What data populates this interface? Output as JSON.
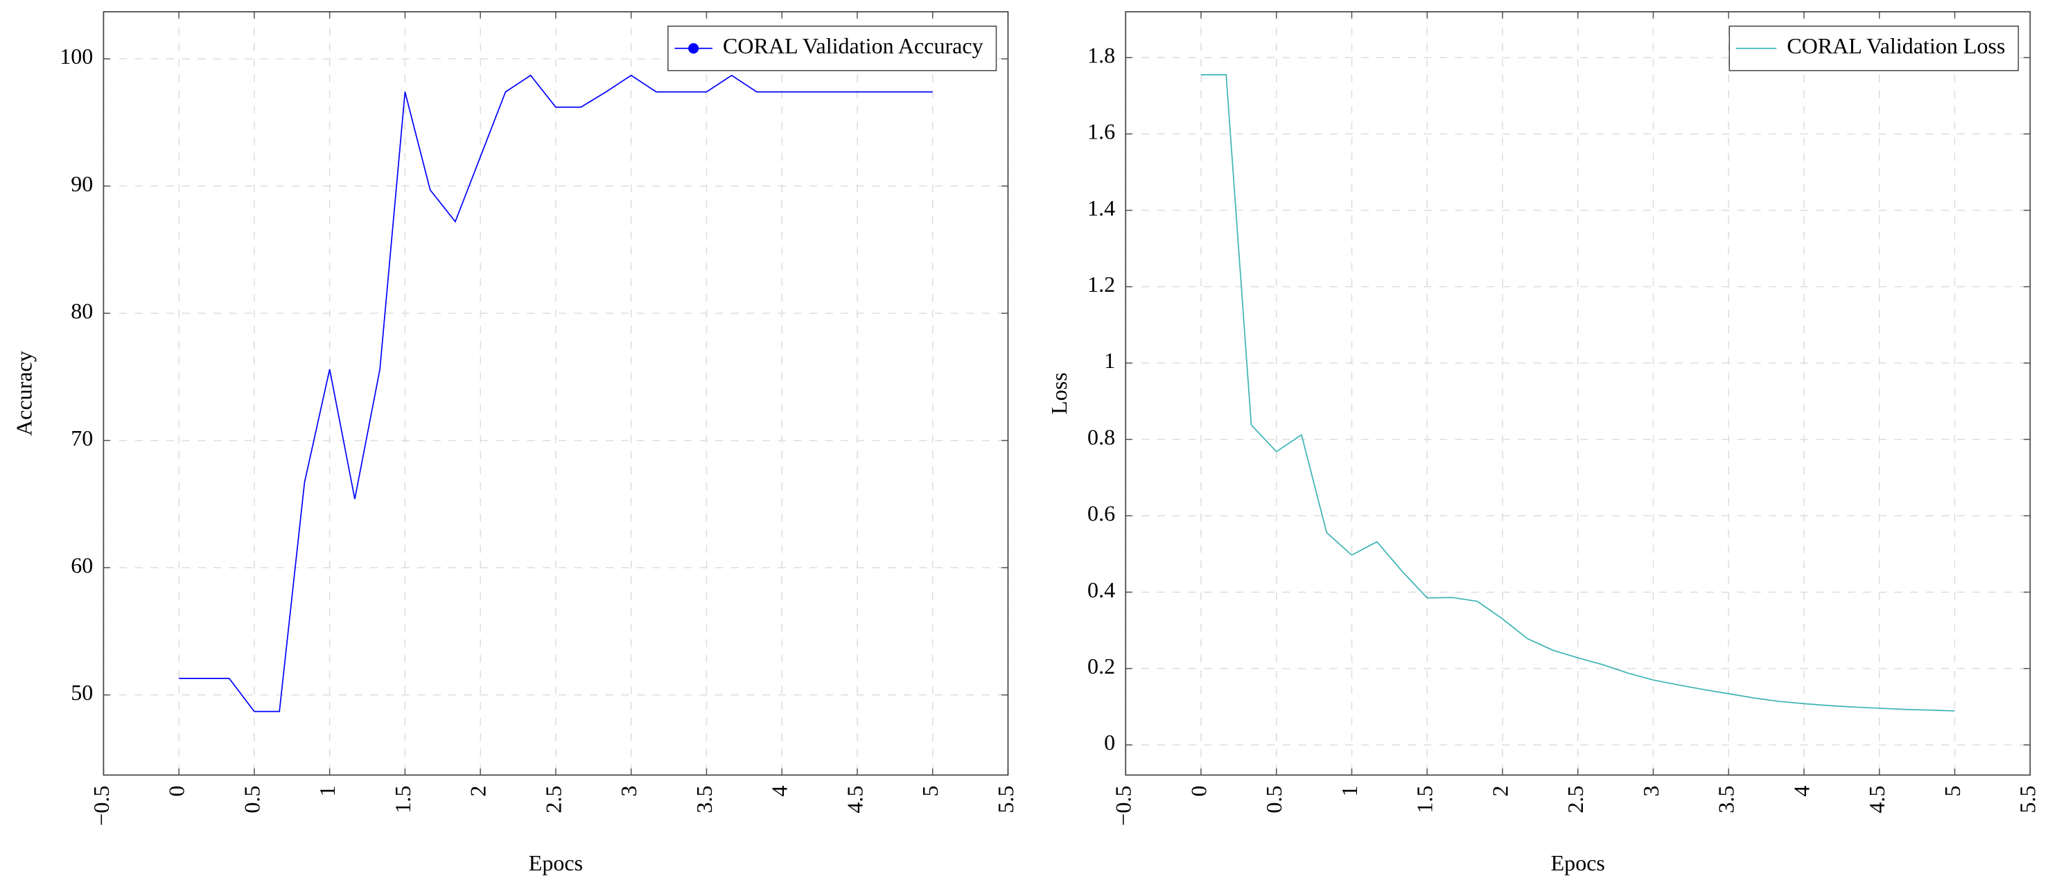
{
  "chart_data": [
    {
      "type": "line",
      "xlabel": "Epocs",
      "ylabel": "Accuracy",
      "xlim": [
        -0.5,
        5.5
      ],
      "ylim": [
        43.7,
        103.7
      ],
      "xticks": [
        {
          "value": -0.5,
          "label": "−0.5"
        },
        0,
        0.5,
        1,
        1.5,
        2,
        2.5,
        3,
        3.5,
        4,
        4.5,
        5,
        5.5
      ],
      "yticks": [
        50,
        60,
        70,
        80,
        90,
        100
      ],
      "grid": true,
      "legend_position": "upper right",
      "legend_marker": "circle",
      "x": [
        0,
        0.1667,
        0.3333,
        0.5,
        0.6667,
        0.8333,
        1,
        1.1667,
        1.3333,
        1.5,
        1.6667,
        1.8333,
        2,
        2.1667,
        2.3333,
        2.5,
        2.6667,
        2.8333,
        3,
        3.1667,
        3.3333,
        3.5,
        3.6667,
        3.8333,
        4,
        4.1667,
        4.3333,
        4.5,
        4.6667,
        4.8333,
        5
      ],
      "series": [
        {
          "name": "CORAL Validation Accuracy",
          "color": "#0000ff",
          "values": [
            51.3,
            51.3,
            51.3,
            48.7,
            48.7,
            66.7,
            75.6,
            65.4,
            75.6,
            97.4,
            89.7,
            87.2,
            92.3,
            97.4,
            98.7,
            96.2,
            96.2,
            97.4,
            98.7,
            97.4,
            97.4,
            97.4,
            98.7,
            97.4,
            97.4,
            97.4,
            97.4,
            97.4,
            97.4,
            97.4,
            97.4
          ]
        }
      ]
    },
    {
      "type": "line",
      "xlabel": "Epocs",
      "ylabel": "Loss",
      "xlim": [
        -0.5,
        5.5
      ],
      "ylim": [
        -0.079,
        1.92
      ],
      "xticks": [
        {
          "value": -0.5,
          "label": "−0.5"
        },
        0,
        0.5,
        1,
        1.5,
        2,
        2.5,
        3,
        3.5,
        4,
        4.5,
        5,
        5.5
      ],
      "yticks": [
        0,
        0.2,
        0.4,
        0.6,
        0.8,
        1,
        1.2,
        1.4,
        1.6,
        1.8
      ],
      "grid": true,
      "legend_position": "upper right",
      "x": [
        0,
        0.1667,
        0.3333,
        0.5,
        0.6667,
        0.8333,
        1,
        1.1667,
        1.3333,
        1.5,
        1.6667,
        1.8333,
        2,
        2.1667,
        2.3333,
        2.5,
        2.6667,
        2.8333,
        3,
        3.1667,
        3.3333,
        3.5,
        3.6667,
        3.8333,
        4,
        4.1667,
        4.3333,
        4.5,
        4.6667,
        4.8333,
        5
      ],
      "series": [
        {
          "name": "CORAL Validation Loss",
          "color": "#3bb3b3",
          "values": [
            1.755,
            1.755,
            0.838,
            0.768,
            0.812,
            0.556,
            0.497,
            0.532,
            0.455,
            0.385,
            0.386,
            0.376,
            0.33,
            0.278,
            0.248,
            0.228,
            0.21,
            0.188,
            0.17,
            0.157,
            0.145,
            0.134,
            0.123,
            0.114,
            0.108,
            0.103,
            0.099,
            0.096,
            0.093,
            0.091,
            0.089
          ]
        }
      ]
    }
  ]
}
